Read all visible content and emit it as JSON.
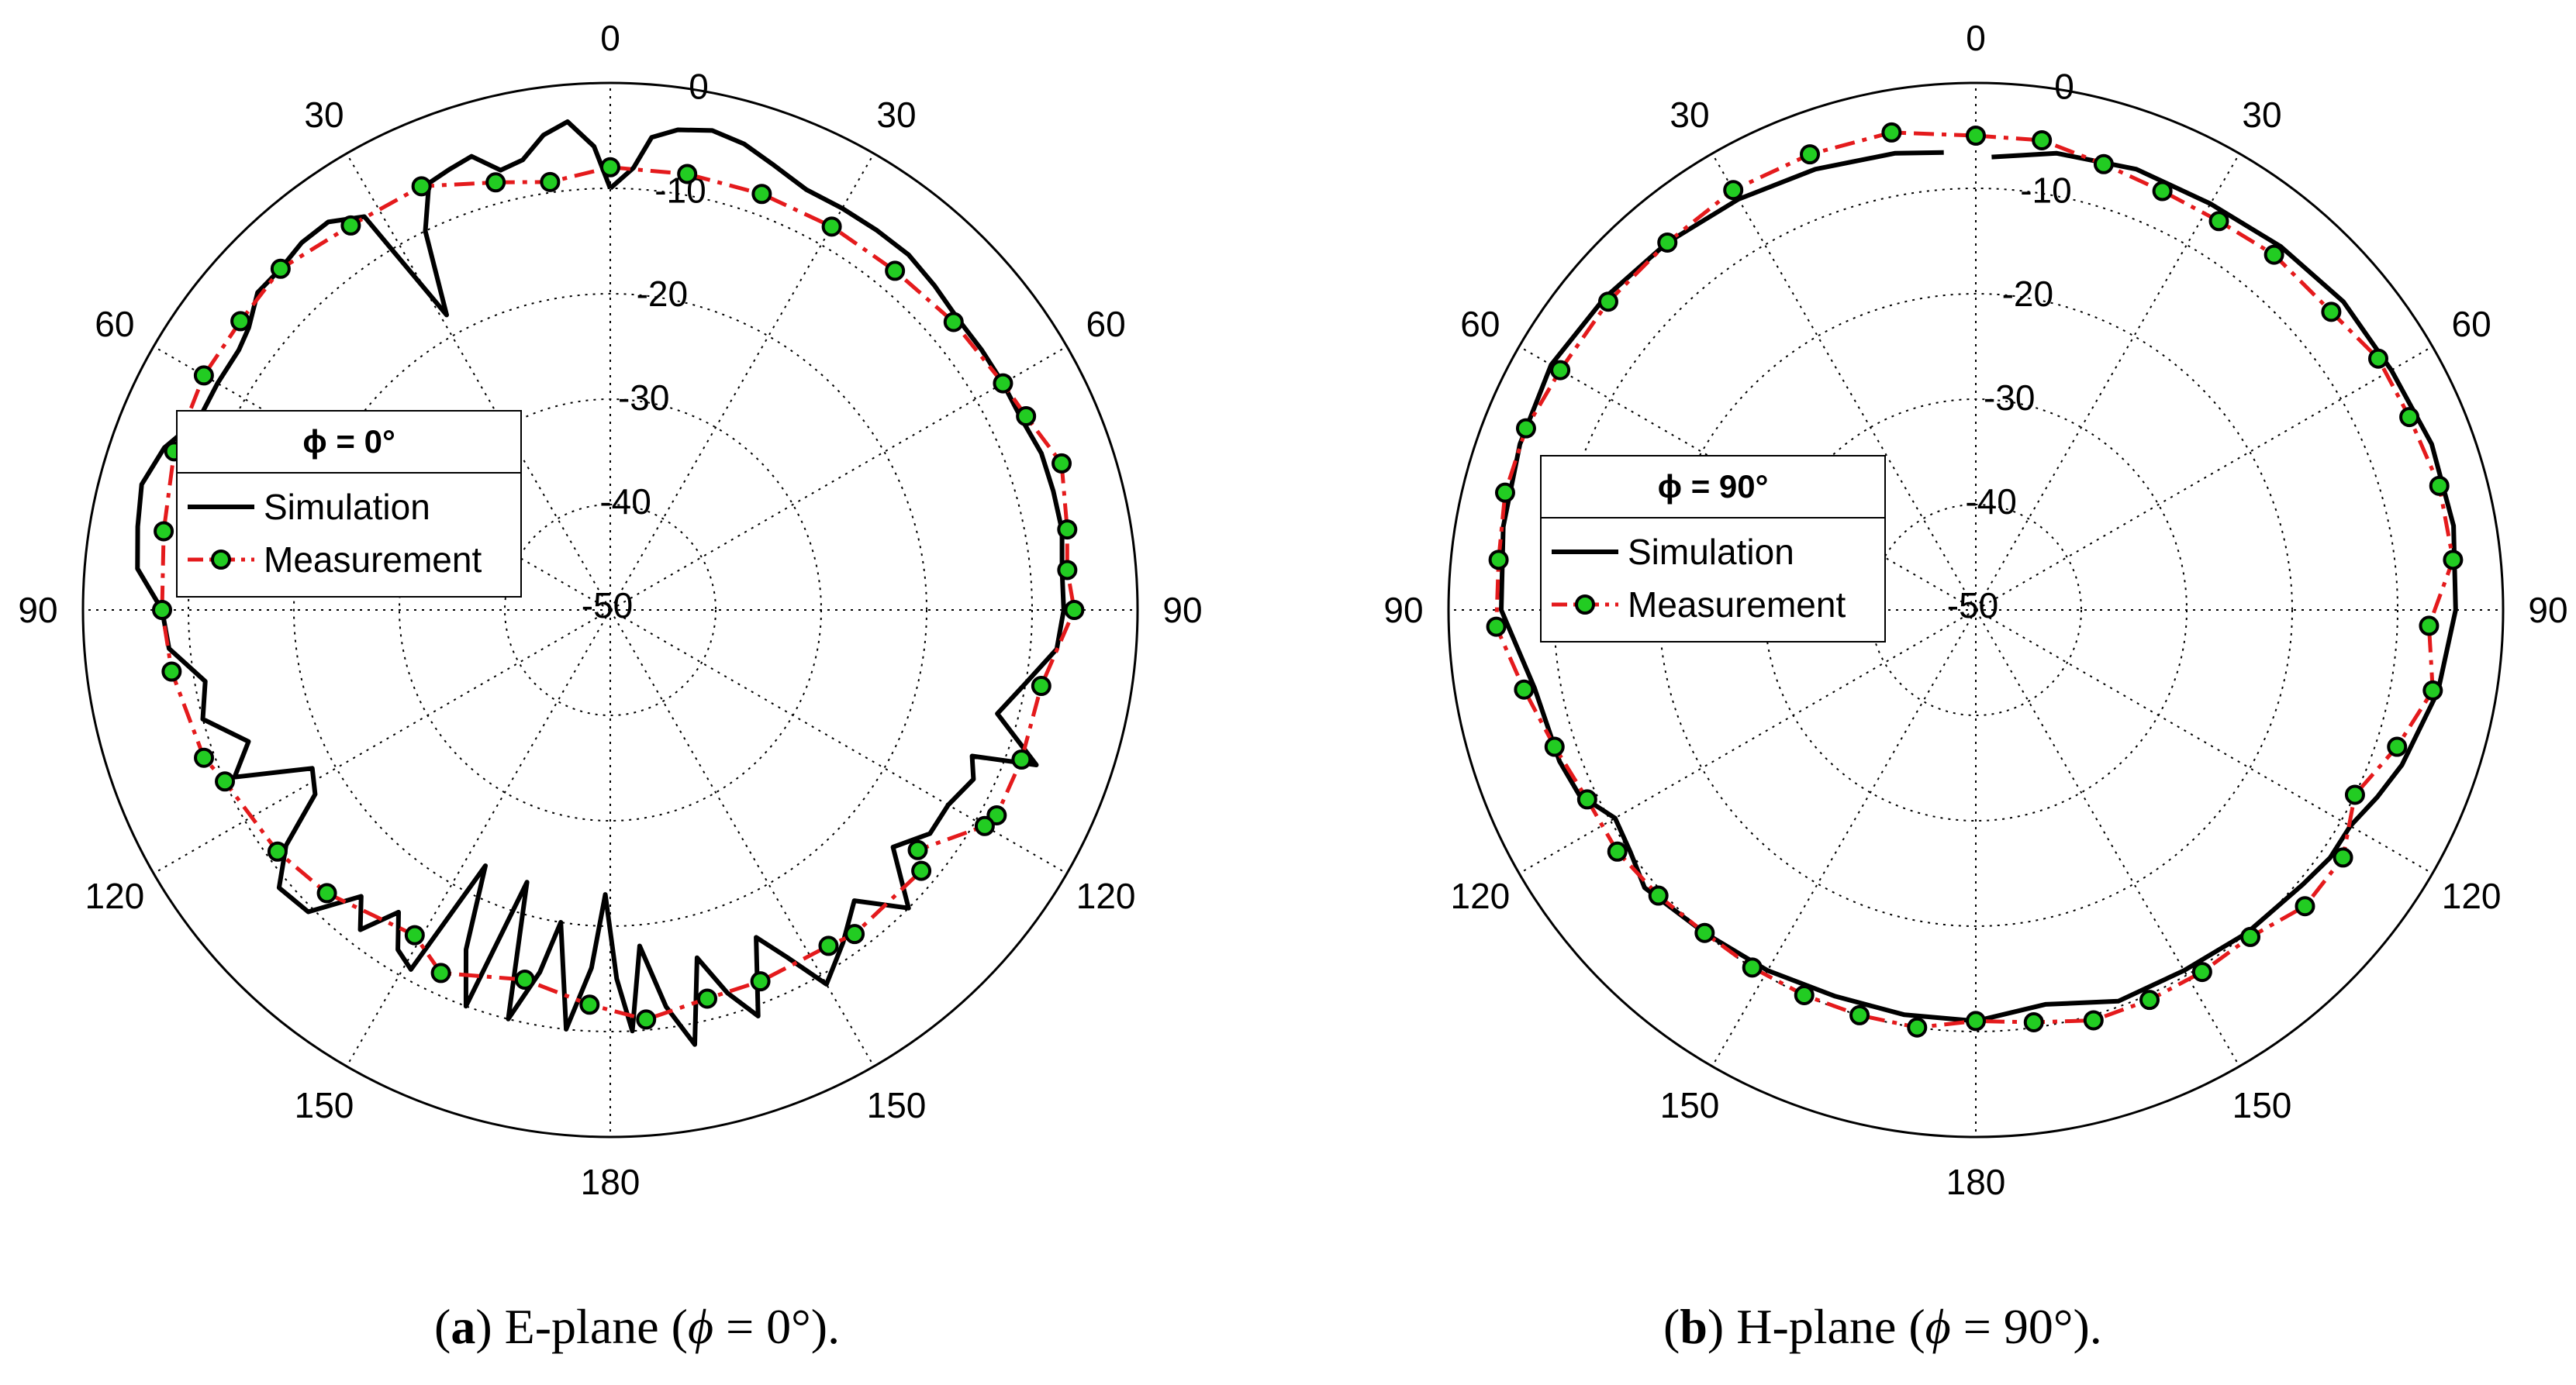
{
  "chart_data": [
    {
      "type": "polar-line",
      "id": "a",
      "plane_label": "E-plane",
      "legend": {
        "title": "ϕ = 0°",
        "entries": [
          "Simulation",
          "Measurement"
        ]
      },
      "rlim": [
        -50,
        0
      ],
      "radial_ticks": [
        0,
        -10,
        -20,
        -30,
        -40,
        -50
      ],
      "angle_labels": [
        "0",
        "30",
        "60",
        "90",
        "120",
        "150",
        "180",
        "150",
        "120",
        "90",
        "60",
        "30"
      ],
      "colors": {
        "simulation": "#000000",
        "measurement": "#e41a1c",
        "marker": "#22cc22"
      },
      "series": [
        {
          "name": "Simulation",
          "theta": [
            0,
            3,
            5,
            8,
            12,
            16,
            20,
            25,
            30,
            35,
            40,
            45,
            50,
            55,
            60,
            65,
            70,
            75,
            80,
            85,
            90,
            95,
            100,
            105,
            110,
            112,
            115,
            120,
            125,
            130,
            135,
            140,
            145,
            150,
            153,
            156,
            160,
            163,
            166,
            169,
            172,
            175,
            177,
            179,
            181,
            183,
            186,
            189,
            191,
            194,
            197,
            200,
            203,
            206,
            209,
            212,
            215,
            218,
            221,
            225,
            230,
            234,
            238,
            242,
            246,
            250,
            255,
            260,
            265,
            270,
            275,
            280,
            285,
            290,
            295,
            300,
            305,
            308,
            312,
            316,
            320,
            324,
            328,
            331,
            334,
            337,
            340,
            343,
            346,
            349,
            352,
            355,
            358,
            360
          ],
          "r": [
            -10,
            -8,
            -5,
            -4,
            -3.5,
            -4,
            -5,
            -6,
            -6,
            -6,
            -6,
            -6.5,
            -7,
            -7,
            -7,
            -7,
            -6.5,
            -6.5,
            -6.5,
            -7,
            -7,
            -7.5,
            -10,
            -12,
            -7,
            -13,
            -12,
            -13,
            -13,
            -15,
            -10,
            -14,
            -11.5,
            -9,
            -13,
            -16,
            -9,
            -12,
            -16,
            -8,
            -12,
            -18,
            -10,
            -15,
            -23,
            -16,
            -10,
            -20,
            -15,
            -10,
            -23,
            -10,
            -15,
            -23,
            -11,
            -12,
            -15,
            -11.5,
            -14,
            -9.5,
            -9,
            -12,
            -17,
            -18,
            -11,
            -13.5,
            -10,
            -11,
            -8,
            -7.5,
            -5,
            -4.5,
            -4,
            -5,
            -7,
            -7,
            -7,
            -6.5,
            -5,
            -5,
            -4.5,
            -4.5,
            -6,
            -18,
            -10,
            -6,
            -5.5,
            -5,
            -7,
            -6.5,
            -4.5,
            -3.5,
            -6,
            -10
          ]
        },
        {
          "name": "Measurement",
          "theta": [
            0,
            10,
            20,
            30,
            40,
            50,
            60,
            65,
            72,
            80,
            85,
            90,
            100,
            110,
            118,
            120,
            128,
            130,
            143,
            147,
            158,
            166,
            175,
            183,
            193,
            205,
            211,
            225,
            234,
            246,
            250,
            262,
            270,
            280,
            290,
            300,
            308,
            316,
            326,
            336,
            345,
            352,
            360
          ],
          "r": [
            -8,
            -8,
            -8,
            -8,
            -8,
            -7.5,
            -7,
            -6.5,
            -5,
            -6,
            -6.5,
            -6,
            -8.5,
            -8.5,
            -8.5,
            -9,
            -13,
            -11.5,
            -11.5,
            -12,
            -12,
            -12,
            -11,
            -12.5,
            -14,
            -12,
            -14,
            -12,
            -11,
            -10,
            -9,
            -8,
            -7.5,
            -7,
            -6,
            -5.5,
            -5.5,
            -5,
            -6,
            -6,
            -8,
            -9,
            -8
          ]
        }
      ]
    },
    {
      "type": "polar-line",
      "id": "b",
      "plane_label": "H-plane",
      "legend": {
        "title": "ϕ = 90°",
        "entries": [
          "Simulation",
          "Measurement"
        ]
      },
      "rlim": [
        -50,
        0
      ],
      "radial_ticks": [
        0,
        -10,
        -20,
        -30,
        -40,
        -50
      ],
      "angle_labels": [
        "0",
        "30",
        "60",
        "90",
        "120",
        "150",
        "180",
        "150",
        "120",
        "90",
        "60",
        "30"
      ],
      "colors": {
        "simulation": "#000000",
        "measurement": "#e41a1c",
        "marker": "#22cc22"
      },
      "series": [
        {
          "name": "Simulation",
          "theta": [
            2,
            10,
            20,
            30,
            40,
            50,
            60,
            70,
            80,
            90,
            100,
            110,
            115,
            120,
            125,
            130,
            140,
            150,
            160,
            170,
            180,
            190,
            200,
            210,
            220,
            230,
            235,
            240,
            245,
            250,
            260,
            270,
            280,
            290,
            300,
            310,
            320,
            330,
            340,
            350,
            356
          ],
          "r": [
            -7,
            -6,
            -5.5,
            -5.5,
            -5,
            -4.5,
            -4.5,
            -4,
            -4,
            -4.5,
            -5.5,
            -7,
            -8,
            -9,
            -9,
            -9.5,
            -10,
            -10.5,
            -10.5,
            -12,
            -11,
            -11,
            -11,
            -10.5,
            -10,
            -9,
            -10,
            -10.5,
            -8.5,
            -8,
            -7.5,
            -5,
            -4.5,
            -4,
            -3.5,
            -4,
            -4.5,
            -5,
            -5.5,
            -6,
            -6.5
          ]
        },
        {
          "name": "Measurement",
          "theta": [
            0,
            8,
            16,
            24,
            32,
            40,
            50,
            58,
            66,
            75,
            84,
            92,
            100,
            108,
            116,
            124,
            132,
            140,
            148,
            156,
            164,
            172,
            180,
            188,
            196,
            204,
            212,
            220,
            228,
            236,
            244,
            252,
            260,
            268,
            276,
            284,
            292,
            300,
            310,
            320,
            330,
            340,
            350,
            360
          ],
          "r": [
            -5,
            -5,
            -6,
            -6.5,
            -6.5,
            -6,
            -6,
            -5,
            -5,
            -4.5,
            -4.5,
            -7,
            -6,
            -8,
            -10,
            -8,
            -8,
            -9.5,
            -9.5,
            -9.5,
            -9.5,
            -10.5,
            -11,
            -10,
            -10,
            -10,
            -10,
            -10,
            -9.5,
            -9,
            -9,
            -8,
            -6.5,
            -4.5,
            -4.5,
            -4,
            -4,
            -4.5,
            -4.5,
            -4.5,
            -4,
            -4,
            -4,
            -5
          ]
        }
      ]
    }
  ],
  "captions": [
    {
      "tag": "a",
      "plane": "E-plane",
      "open": " (",
      "symbol": "ϕ",
      "equals": " = ",
      "value": "0°",
      "close": ")."
    },
    {
      "tag": "b",
      "plane": "H-plane",
      "open": " (",
      "symbol": "ϕ",
      "equals": " = ",
      "value": "90°",
      "close": ")."
    }
  ]
}
